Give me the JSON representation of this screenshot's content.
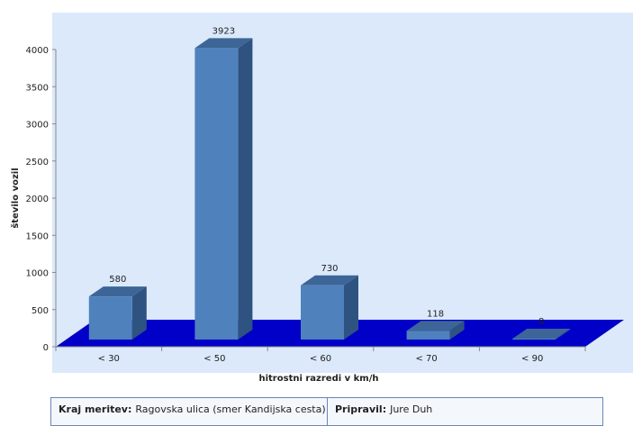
{
  "chart_data": {
    "type": "bar",
    "style": "3d-column",
    "categories": [
      "< 30",
      "< 50",
      "< 60",
      "< 70",
      "< 90"
    ],
    "values": [
      580,
      3923,
      730,
      118,
      8
    ],
    "data_labels": [
      "580",
      "3923",
      "730",
      "118",
      "8"
    ],
    "xlabel": "hitrostni razredi v km/h",
    "ylabel": "število vozil",
    "ylim": [
      0,
      4000
    ],
    "yticks": [
      0,
      500,
      1000,
      1500,
      2000,
      2500,
      3000,
      3500,
      4000
    ],
    "grid": false,
    "legend": "none",
    "colors": {
      "plot_background": "#dbe9fb",
      "floor": "#0000c8",
      "bar_front": "#4f81bd",
      "bar_side": "#2f5380",
      "bar_top": "#3d6597"
    }
  },
  "info": {
    "location_label": "Kraj meritev:",
    "location_value": "Ragovska ulica (smer Kandijska cesta)",
    "author_label": "Pripravil:",
    "author_value": "Jure Duh"
  }
}
